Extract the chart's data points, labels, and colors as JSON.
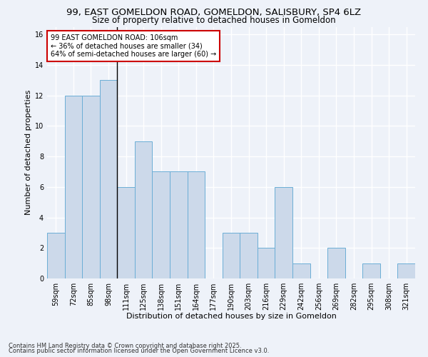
{
  "title_line1": "99, EAST GOMELDON ROAD, GOMELDON, SALISBURY, SP4 6LZ",
  "title_line2": "Size of property relative to detached houses in Gomeldon",
  "xlabel": "Distribution of detached houses by size in Gomeldon",
  "ylabel": "Number of detached properties",
  "categories": [
    "59sqm",
    "72sqm",
    "85sqm",
    "98sqm",
    "111sqm",
    "125sqm",
    "138sqm",
    "151sqm",
    "164sqm",
    "177sqm",
    "190sqm",
    "203sqm",
    "216sqm",
    "229sqm",
    "242sqm",
    "256sqm",
    "269sqm",
    "282sqm",
    "295sqm",
    "308sqm",
    "321sqm"
  ],
  "values": [
    3,
    12,
    12,
    13,
    6,
    9,
    7,
    7,
    7,
    0,
    3,
    3,
    2,
    6,
    1,
    0,
    2,
    0,
    1,
    0,
    1
  ],
  "bar_color": "#ccd9ea",
  "bar_edge_color": "#6baed6",
  "annotation_text": "99 EAST GOMELDON ROAD: 106sqm\n← 36% of detached houses are smaller (34)\n64% of semi-detached houses are larger (60) →",
  "annotation_box_color": "white",
  "annotation_box_edge": "#cc0000",
  "property_line_x": 3.5,
  "ylim": [
    0,
    16.5
  ],
  "yticks": [
    0,
    2,
    4,
    6,
    8,
    10,
    12,
    14,
    16
  ],
  "footer_text1": "Contains HM Land Registry data © Crown copyright and database right 2025.",
  "footer_text2": "Contains public sector information licensed under the Open Government Licence v3.0.",
  "bg_color": "#eef2f9",
  "grid_color": "#ffffff",
  "title_fontsize": 9.5,
  "subtitle_fontsize": 8.5,
  "tick_fontsize": 7,
  "label_fontsize": 8,
  "footer_fontsize": 6
}
